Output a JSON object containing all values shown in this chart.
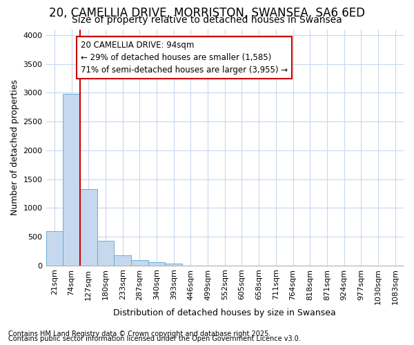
{
  "title1": "20, CAMELLIA DRIVE, MORRISTON, SWANSEA, SA6 6ED",
  "title2": "Size of property relative to detached houses in Swansea",
  "xlabel": "Distribution of detached houses by size in Swansea",
  "ylabel": "Number of detached properties",
  "footnote1": "Contains HM Land Registry data © Crown copyright and database right 2025.",
  "footnote2": "Contains public sector information licensed under the Open Government Licence v3.0.",
  "bin_labels": [
    "21sqm",
    "74sqm",
    "127sqm",
    "180sqm",
    "233sqm",
    "287sqm",
    "340sqm",
    "393sqm",
    "446sqm",
    "499sqm",
    "552sqm",
    "605sqm",
    "658sqm",
    "711sqm",
    "764sqm",
    "818sqm",
    "871sqm",
    "924sqm",
    "977sqm",
    "1030sqm",
    "1083sqm"
  ],
  "bar_heights": [
    600,
    2980,
    1330,
    430,
    175,
    90,
    55,
    30,
    0,
    0,
    0,
    0,
    0,
    0,
    0,
    0,
    0,
    0,
    0,
    0,
    0
  ],
  "bar_color": "#c5d8ee",
  "bar_edge_color": "#6aaed6",
  "background_color": "#ffffff",
  "plot_bg_color": "#ffffff",
  "grid_color": "#c8d8ee",
  "vline_color": "#cc0000",
  "vline_xbin": 1,
  "annotation_text": "20 CAMELLIA DRIVE: 94sqm\n← 29% of detached houses are smaller (1,585)\n71% of semi-detached houses are larger (3,955) →",
  "annotation_box_color": "#ffffff",
  "annotation_box_edge": "#cc0000",
  "ylim": [
    0,
    4100
  ],
  "yticks": [
    0,
    500,
    1000,
    1500,
    2000,
    2500,
    3000,
    3500,
    4000
  ],
  "title_fontsize": 12,
  "subtitle_fontsize": 10,
  "axis_label_fontsize": 9,
  "tick_fontsize": 8,
  "annotation_fontsize": 8.5,
  "footnote_fontsize": 7
}
